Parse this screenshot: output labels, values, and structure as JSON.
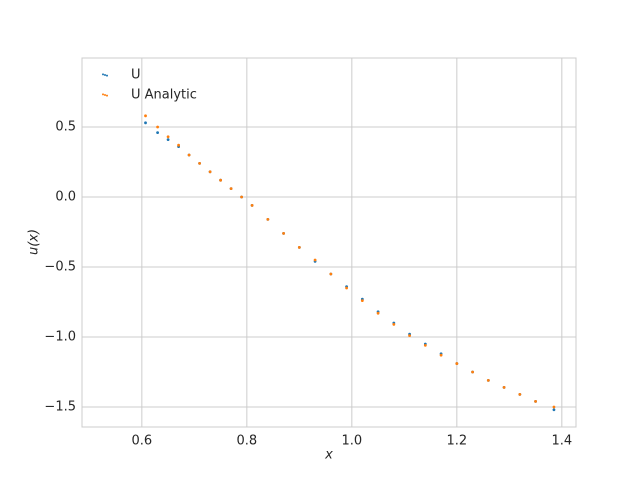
{
  "chart_data": {
    "type": "scatter",
    "xlabel": "x",
    "ylabel": "u(x)",
    "xlim": [
      0.486,
      1.427
    ],
    "ylim": [
      -1.643,
      0.993
    ],
    "xticks": [
      0.6,
      0.8,
      {
        "value": 1.0,
        "label": "1.0"
      },
      1.2,
      1.4
    ],
    "yticks": [
      {
        "value": -1.5,
        "label": "−1.5"
      },
      {
        "value": -1.0,
        "label": "−1.0"
      },
      {
        "value": -0.5,
        "label": "−0.5"
      },
      {
        "value": 0.0,
        "label": "0.0"
      },
      0.5
    ],
    "grid": true,
    "legend": "upper left",
    "series": [
      {
        "name": "U",
        "color": "#1f77b4",
        "x": [
          0.607,
          0.63,
          0.65,
          0.67,
          0.69,
          0.71,
          0.73,
          0.75,
          0.77,
          0.79,
          0.81,
          0.84,
          0.87,
          0.9,
          0.93,
          0.96,
          0.99,
          1.02,
          1.05,
          1.08,
          1.11,
          1.14,
          1.17,
          1.2,
          1.23,
          1.26,
          1.29,
          1.32,
          1.35,
          1.385
        ],
        "values": [
          0.53,
          0.46,
          0.41,
          0.36,
          0.3,
          0.24,
          0.18,
          0.12,
          0.06,
          0.0,
          -0.06,
          -0.16,
          -0.26,
          -0.36,
          -0.46,
          -0.55,
          -0.64,
          -0.73,
          -0.82,
          -0.9,
          -0.98,
          -1.05,
          -1.12,
          -1.19,
          -1.25,
          -1.31,
          -1.36,
          -1.41,
          -1.46,
          -1.52
        ]
      },
      {
        "name": "U Analytic",
        "color": "#ff7f0e",
        "x": [
          0.607,
          0.63,
          0.65,
          0.67,
          0.69,
          0.71,
          0.73,
          0.75,
          0.77,
          0.79,
          0.81,
          0.84,
          0.87,
          0.9,
          0.93,
          0.96,
          0.99,
          1.02,
          1.05,
          1.08,
          1.11,
          1.14,
          1.17,
          1.2,
          1.23,
          1.26,
          1.29,
          1.32,
          1.35,
          1.385
        ],
        "values": [
          0.58,
          0.5,
          0.43,
          0.37,
          0.3,
          0.24,
          0.18,
          0.12,
          0.06,
          0.0,
          -0.06,
          -0.16,
          -0.26,
          -0.36,
          -0.45,
          -0.55,
          -0.65,
          -0.74,
          -0.83,
          -0.91,
          -0.99,
          -1.06,
          -1.13,
          -1.19,
          -1.25,
          -1.31,
          -1.36,
          -1.41,
          -1.46,
          -1.5
        ]
      }
    ]
  }
}
